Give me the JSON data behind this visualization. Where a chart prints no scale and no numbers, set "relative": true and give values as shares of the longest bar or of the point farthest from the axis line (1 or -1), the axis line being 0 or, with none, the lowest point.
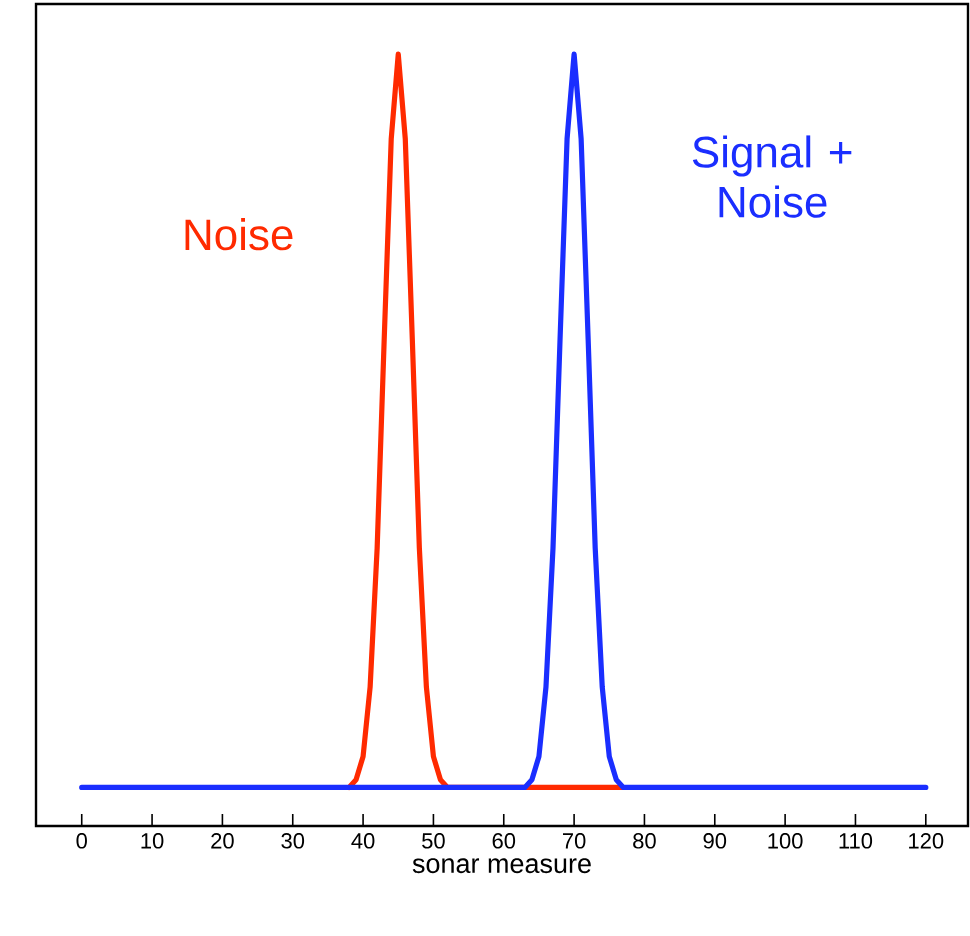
{
  "chart_data": {
    "type": "line",
    "xlabel": "sonar measure",
    "relative": true,
    "xlim": [
      -6.5,
      126
    ],
    "xticks": [
      0,
      10,
      20,
      30,
      40,
      50,
      60,
      70,
      80,
      90,
      100,
      110,
      120
    ],
    "legend": false,
    "grid": false,
    "marker": "none",
    "line_style": "solid",
    "series": [
      {
        "name": "Noise",
        "color": "#ff2a00",
        "x": [
          38,
          39,
          40,
          41,
          42,
          43,
          44,
          45,
          46,
          47,
          48,
          49,
          50,
          51,
          52,
          63,
          77
        ],
        "values": [
          0.05,
          0.06,
          0.09,
          0.18,
          0.36,
          0.63,
          0.89,
          1,
          0.89,
          0.63,
          0.36,
          0.18,
          0.09,
          0.06,
          0.05,
          0.05,
          0.05
        ]
      },
      {
        "name": "Signal +\nNoise",
        "color": "#1a2eff",
        "x": [
          0,
          61,
          63,
          64,
          65,
          66,
          67,
          68,
          69,
          70,
          71,
          72,
          73,
          74,
          75,
          76,
          77,
          79,
          120
        ],
        "values": [
          0.05,
          0.05,
          0.05,
          0.06,
          0.09,
          0.18,
          0.36,
          0.63,
          0.89,
          1,
          0.89,
          0.63,
          0.36,
          0.18,
          0.09,
          0.06,
          0.05,
          0.05,
          0.05
        ]
      }
    ]
  }
}
